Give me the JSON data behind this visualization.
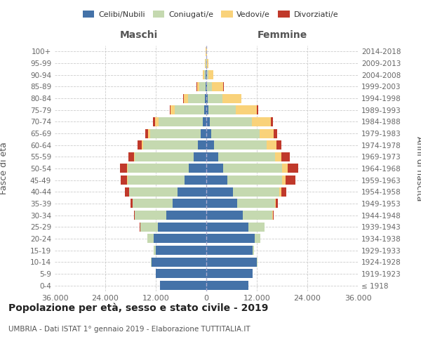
{
  "age_groups": [
    "100+",
    "95-99",
    "90-94",
    "85-89",
    "80-84",
    "75-79",
    "70-74",
    "65-69",
    "60-64",
    "55-59",
    "50-54",
    "45-49",
    "40-44",
    "35-39",
    "30-34",
    "25-29",
    "20-24",
    "15-19",
    "10-14",
    "5-9",
    "0-4"
  ],
  "birth_years": [
    "≤ 1918",
    "1919-1923",
    "1924-1928",
    "1929-1933",
    "1934-1938",
    "1939-1943",
    "1944-1948",
    "1949-1953",
    "1954-1958",
    "1959-1963",
    "1964-1968",
    "1969-1973",
    "1974-1978",
    "1979-1983",
    "1984-1988",
    "1989-1993",
    "1994-1998",
    "1999-2003",
    "2004-2008",
    "2009-2013",
    "2014-2018"
  ],
  "maschi": {
    "celibi": [
      40,
      80,
      120,
      220,
      400,
      550,
      900,
      1300,
      2000,
      3000,
      4200,
      5200,
      6800,
      8000,
      9500,
      11500,
      12500,
      12000,
      13000,
      12000,
      11000
    ],
    "coniugati": [
      40,
      150,
      450,
      1400,
      4000,
      7000,
      10500,
      12000,
      13000,
      14000,
      14500,
      13500,
      11500,
      9500,
      7500,
      4200,
      1500,
      500,
      180,
      50,
      20
    ],
    "vedovi": [
      10,
      50,
      200,
      600,
      1000,
      900,
      700,
      550,
      350,
      180,
      120,
      90,
      60,
      30,
      15,
      5,
      5,
      5,
      5,
      5,
      5
    ],
    "divorziati": [
      5,
      15,
      40,
      70,
      120,
      250,
      500,
      700,
      1000,
      1400,
      1700,
      1600,
      1000,
      550,
      200,
      80,
      25,
      10,
      5,
      5,
      5
    ]
  },
  "femmine": {
    "nubili": [
      30,
      60,
      100,
      170,
      350,
      500,
      800,
      1200,
      1900,
      2800,
      4000,
      5000,
      6300,
      7300,
      8700,
      10000,
      11500,
      11000,
      12000,
      11000,
      10000
    ],
    "coniugate": [
      30,
      120,
      350,
      1100,
      3400,
      6500,
      10000,
      11500,
      12500,
      13500,
      14000,
      13000,
      11000,
      9000,
      7000,
      3800,
      1300,
      400,
      150,
      50,
      20
    ],
    "vedove": [
      40,
      350,
      1200,
      2800,
      4500,
      5000,
      4500,
      3300,
      2200,
      1600,
      1300,
      900,
      500,
      200,
      80,
      30,
      15,
      10,
      5,
      5,
      5
    ],
    "divorziate": [
      5,
      15,
      40,
      70,
      120,
      350,
      600,
      900,
      1300,
      2000,
      2500,
      2200,
      1200,
      550,
      200,
      80,
      20,
      5,
      5,
      5,
      5
    ]
  },
  "colors": {
    "celibi": "#4472a8",
    "coniugati": "#c5d9b0",
    "vedovi": "#f9d27a",
    "divorziati": "#c0392b"
  },
  "xlim": 36000,
  "title": "Popolazione per età, sesso e stato civile - 2019",
  "subtitle": "UMBRIA - Dati ISTAT 1° gennaio 2019 - Elaborazione TUTTITALIA.IT",
  "ylabel_left": "Fasce di età",
  "ylabel_right": "Anni di nascita",
  "xlabel_ticks": [
    -36000,
    -24000,
    -12000,
    0,
    12000,
    24000,
    36000
  ],
  "xlabel_labels": [
    "36.000",
    "24.000",
    "12.000",
    "0",
    "12.000",
    "24.000",
    "36.000"
  ]
}
